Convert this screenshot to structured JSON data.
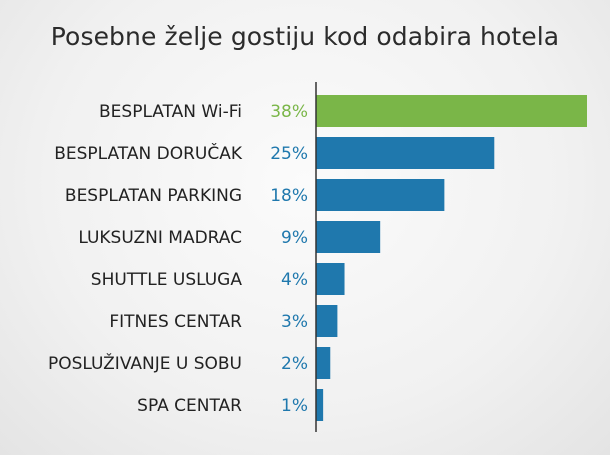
{
  "chart_data": {
    "type": "bar",
    "orientation": "horizontal",
    "title": "Posebne želje gostiju kod odabira hotela",
    "categories": [
      "BESPLATAN Wi-Fi",
      "BESPLATAN DORUČAK",
      "BESPLATAN PARKING",
      "LUKSUZNI MADRAC",
      "SHUTTLE USLUGA",
      "FITNES CENTAR",
      "POSLUŽIVANJE U SOBU",
      "SPA CENTAR"
    ],
    "values": [
      38,
      25,
      18,
      9,
      4,
      3,
      2,
      1
    ],
    "value_labels": [
      "38%",
      "25%",
      "18%",
      "9%",
      "4%",
      "3%",
      "2%",
      "1%"
    ],
    "xlim": [
      0,
      38
    ],
    "grid": false,
    "colors": {
      "highlight": "#7ab648",
      "default": "#1f78ad",
      "axis": "#333333"
    },
    "highlight_index": 0
  }
}
